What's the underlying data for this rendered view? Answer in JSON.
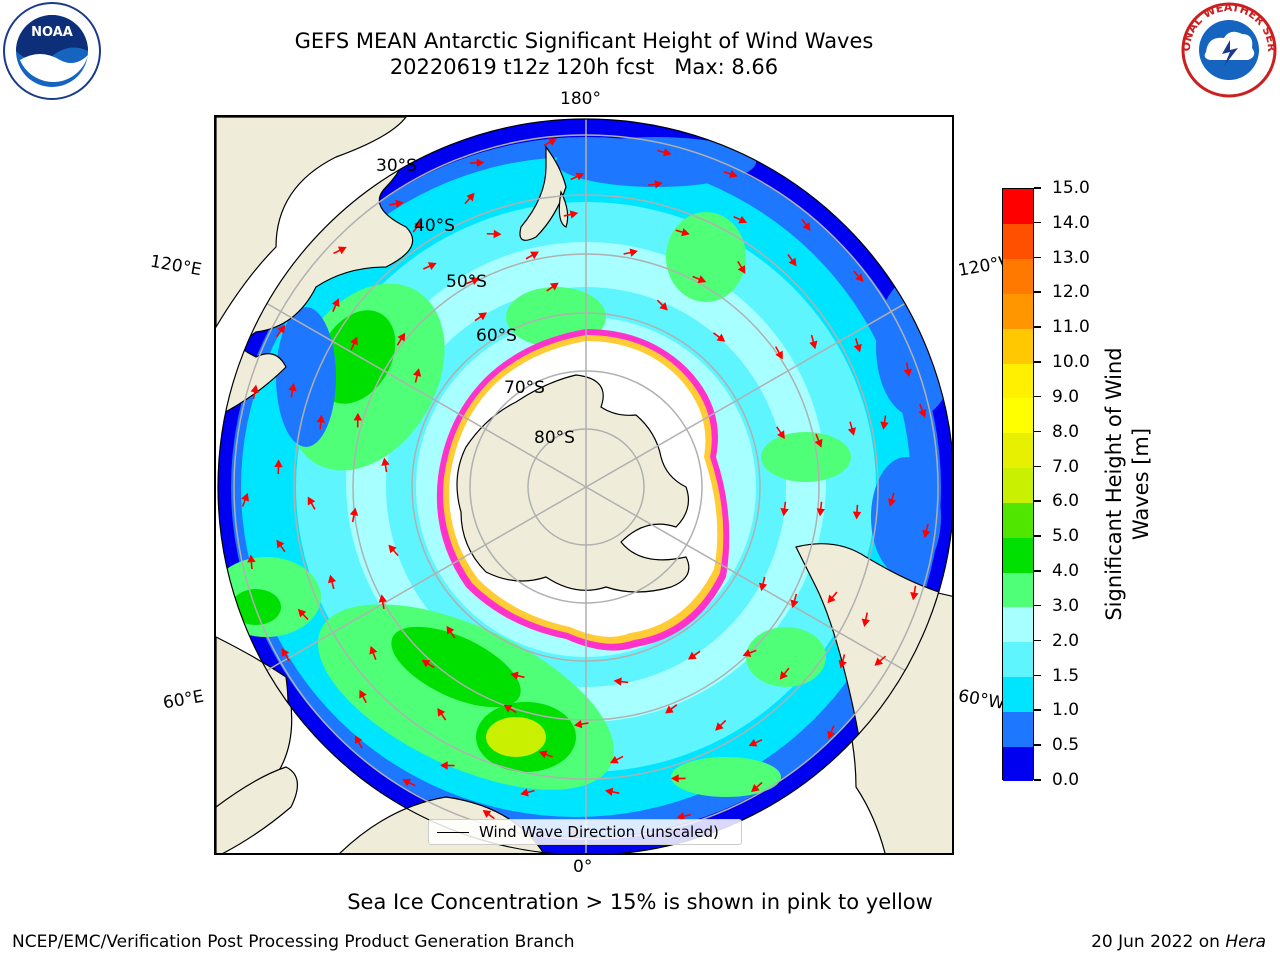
{
  "title_line1": "GEFS MEAN Antarctic Significant Height of Wind Waves",
  "title_line2": "20220619 t12z 120h fcst   Max: 8.66",
  "longitude_labels": {
    "top": "180°",
    "bottom": "0°",
    "upper_left": "120°E",
    "upper_right": "120°W",
    "lower_left": "60°E",
    "lower_right": "60°W"
  },
  "latitude_labels": [
    "30°S",
    "40°S",
    "50°S",
    "60°S",
    "70°S",
    "80°S"
  ],
  "legend": {
    "line_label": "Wind Wave Direction (unscaled)"
  },
  "colorbar": {
    "label_line1": "Significant Height of Wind",
    "label_line2": "Waves [m]",
    "levels": [
      "0.0",
      "0.5",
      "1.0",
      "1.5",
      "2.0",
      "3.0",
      "4.0",
      "5.0",
      "6.0",
      "7.0",
      "8.0",
      "9.0",
      "10.0",
      "11.0",
      "12.0",
      "13.0",
      "14.0",
      "15.0"
    ],
    "colors": [
      "#0000f0",
      "#1e78ff",
      "#00e5ff",
      "#5ff5ff",
      "#a8ffff",
      "#50ff78",
      "#00e000",
      "#50e600",
      "#c8f000",
      "#e6f000",
      "#ffff00",
      "#fff000",
      "#ffc800",
      "#ff9600",
      "#ff7800",
      "#ff5000",
      "#ff0000"
    ]
  },
  "map_colors": {
    "land": "#efedda",
    "ice_interior": "#ffffff",
    "ice_edge": "#ff33cc",
    "ice_edge_inner": "#ffcc33",
    "grid": "#b0b0b0",
    "arrow": "#ff0000"
  },
  "subtitle": "Sea Ice Concentration > 15% is shown in pink to yellow",
  "footer_left": "NCEP/EMC/Verification Post Processing Product Generation Branch",
  "footer_right_prefix": "20 Jun 2022 on ",
  "footer_right_machine": "Hera",
  "logos": {
    "left": "NOAA",
    "right": "NATIONAL WEATHER SERVICE"
  }
}
